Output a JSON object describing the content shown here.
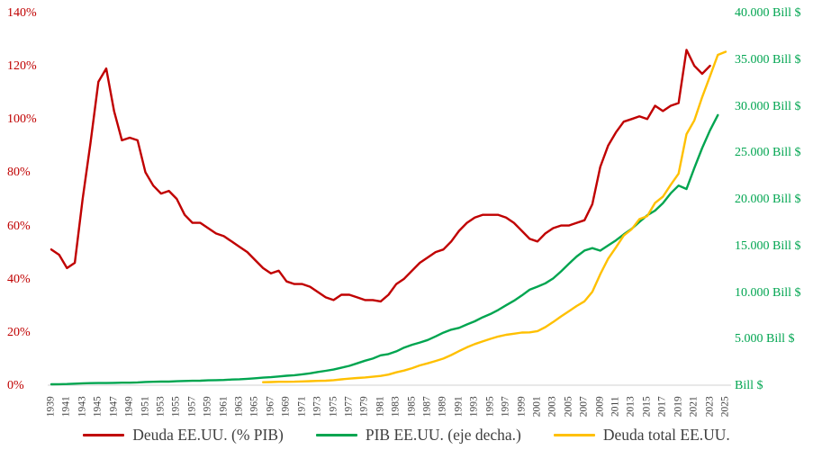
{
  "chart_data": {
    "type": "line",
    "title": "",
    "grid": "off",
    "legend_position": "bottom",
    "x_start_year": 1939,
    "x_end_year": 2025,
    "x_tick_step": 2,
    "x_tick_labels": [
      "1939",
      "1941",
      "1943",
      "1945",
      "1947",
      "1949",
      "1951",
      "1953",
      "1955",
      "1957",
      "1959",
      "1961",
      "1963",
      "1965",
      "1967",
      "1969",
      "1971",
      "1973",
      "1975",
      "1977",
      "1979",
      "1981",
      "1983",
      "1985",
      "1987",
      "1989",
      "1991",
      "1993",
      "1995",
      "1997",
      "1999",
      "2001",
      "2003",
      "2005",
      "2007",
      "2009",
      "2011",
      "2013",
      "2015",
      "2017",
      "2019",
      "2021",
      "2023",
      "2025"
    ],
    "left_axis": {
      "color": "#C00000",
      "min": 0,
      "max": 140,
      "tick_labels": [
        "0%",
        "20%",
        "40%",
        "60%",
        "80%",
        "100%",
        "120%",
        "140%"
      ]
    },
    "right_axis": {
      "color": "#00A550",
      "min": 0,
      "max": 40000,
      "tick_labels": [
        "Bill $",
        "5.000 Bill $",
        "10.000 Bill $",
        "15.000 Bill $",
        "20.000 Bill $",
        "25.000 Bill $",
        "30.000 Bill $",
        "35.000 Bill $",
        "40.000 Bill $"
      ]
    },
    "series": [
      {
        "id": "deuda-pct-pib",
        "name": "Deuda EE.UU. (% PIB)",
        "color": "#C00000",
        "axis": "left",
        "start_year": 1939,
        "values": [
          51,
          49,
          44,
          46,
          70,
          91,
          114,
          119,
          103,
          92,
          93,
          92,
          80,
          75,
          72,
          73,
          70,
          64,
          61,
          61,
          59,
          57,
          56,
          54,
          52,
          50,
          47,
          44,
          42,
          43,
          39,
          38,
          38,
          37,
          35,
          33,
          32,
          34,
          34,
          33,
          32,
          32,
          31.5,
          34,
          38,
          40,
          43,
          46,
          48,
          50,
          51,
          54,
          58,
          61,
          63,
          64,
          64,
          64,
          63,
          61,
          58,
          55,
          54,
          57,
          59,
          60,
          60,
          61,
          62,
          68,
          82,
          90,
          95,
          99,
          100,
          101,
          100,
          105,
          103,
          105,
          106,
          126,
          120,
          117,
          120
        ]
      },
      {
        "id": "pib",
        "name": "PIB EE.UU. (eje decha.)",
        "color": "#00A550",
        "axis": "right",
        "start_year": 1939,
        "values": [
          93,
          103,
          129,
          166,
          203,
          224,
          228,
          228,
          250,
          275,
          273,
          300,
          347,
          368,
          390,
          391,
          426,
          450,
          475,
          482,
          522,
          542,
          562,
          604,
          638,
          685,
          742,
          813,
          860,
          941,
          1018,
          1073,
          1165,
          1279,
          1425,
          1545,
          1685,
          1873,
          2082,
          2352,
          2627,
          2857,
          3207,
          3344,
          3634,
          4038,
          4339,
          4580,
          4855,
          5236,
          5642,
          5963,
          6158,
          6520,
          6859,
          7287,
          7640,
          8073,
          8578,
          9063,
          9631,
          10252,
          10582,
          10936,
          11458,
          12214,
          13037,
          13815,
          14452,
          14713,
          14449,
          14992,
          15543,
          16197,
          16785,
          17527,
          18238,
          18745,
          19543,
          20612,
          21433,
          21060,
          23315,
          25463,
          27361,
          29000
        ]
      },
      {
        "id": "deuda-total",
        "name": "Deuda total EE.UU.",
        "color": "#FFC000",
        "axis": "right",
        "start_year": 1966,
        "values": [
          320,
          340,
          368,
          365,
          380,
          408,
          435,
          466,
          483,
          541,
          629,
          706,
          776,
          829,
          909,
          994,
          1142,
          1377,
          1572,
          1823,
          2125,
          2350,
          2602,
          2857,
          3233,
          3665,
          4064,
          4411,
          4693,
          4974,
          5225,
          5413,
          5526,
          5656,
          5674,
          5807,
          6228,
          6783,
          7379,
          7933,
          8507,
          9008,
          10025,
          11910,
          13562,
          14790,
          16066,
          16738,
          17824,
          18151,
          19573,
          20245,
          21516,
          22719,
          26945,
          28429,
          30928,
          33167,
          35460,
          35800
        ]
      }
    ]
  }
}
